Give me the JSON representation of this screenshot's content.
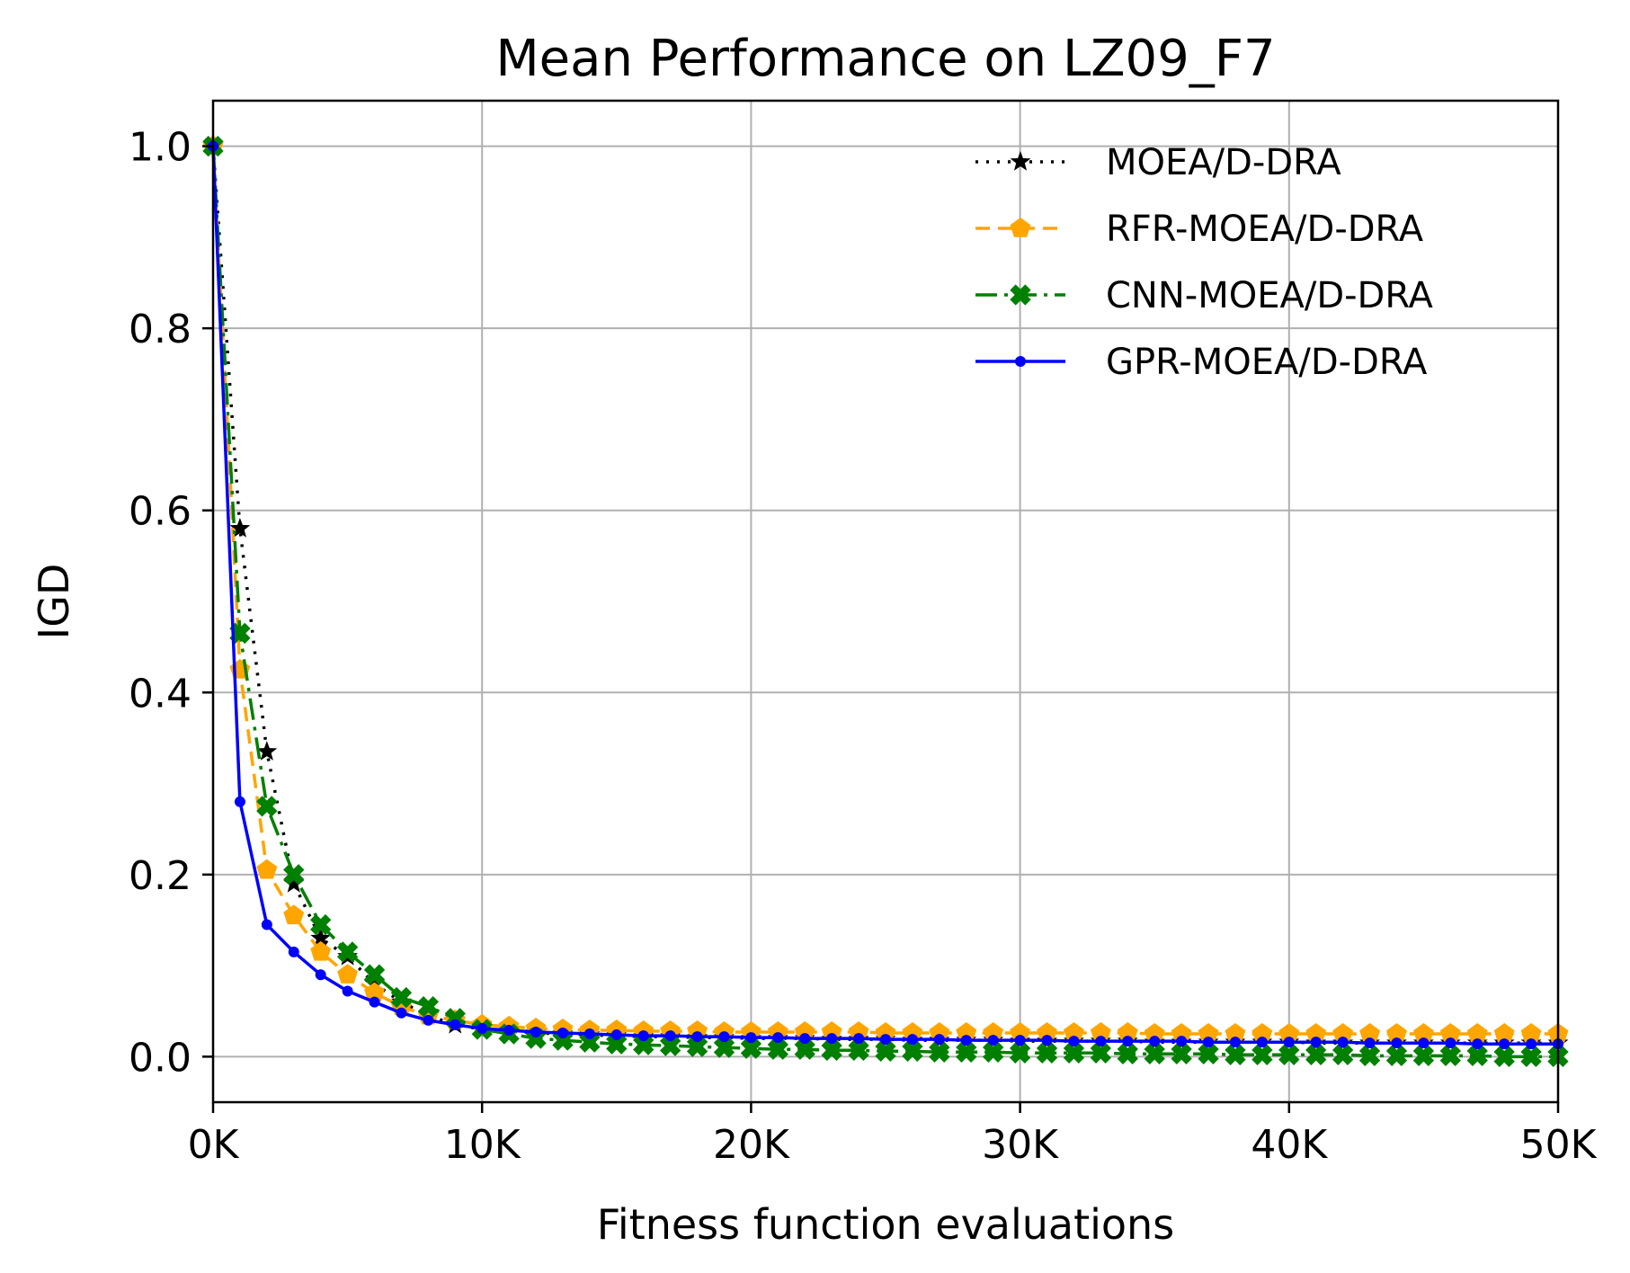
{
  "chart_data": {
    "type": "line",
    "title": "Mean Performance on LZ09_F7",
    "xlabel": "Fitness function evaluations",
    "ylabel": "IGD",
    "xlim": [
      0,
      50000
    ],
    "ylim": [
      -0.05,
      1.05
    ],
    "xticks": [
      0,
      10000,
      20000,
      30000,
      40000,
      50000
    ],
    "xtick_labels": [
      "0K",
      "10K",
      "20K",
      "30K",
      "40K",
      "50K"
    ],
    "yticks": [
      0.0,
      0.2,
      0.4,
      0.6,
      0.8,
      1.0
    ],
    "ytick_labels": [
      "0.0",
      "0.2",
      "0.4",
      "0.6",
      "0.8",
      "1.0"
    ],
    "grid": true,
    "legend_position": "top-right",
    "x": [
      0,
      1000,
      2000,
      3000,
      4000,
      5000,
      6000,
      7000,
      8000,
      9000,
      10000,
      11000,
      12000,
      13000,
      14000,
      15000,
      16000,
      17000,
      18000,
      19000,
      20000,
      21000,
      22000,
      23000,
      24000,
      25000,
      26000,
      27000,
      28000,
      29000,
      30000,
      31000,
      32000,
      33000,
      34000,
      35000,
      36000,
      37000,
      38000,
      39000,
      40000,
      41000,
      42000,
      43000,
      44000,
      45000,
      46000,
      47000,
      48000,
      49000,
      50000
    ],
    "series": [
      {
        "name": "MOEA/D-DRA",
        "color": "#000000",
        "linestyle": "dotted",
        "marker": "star",
        "values": [
          1.0,
          0.58,
          0.335,
          0.19,
          0.13,
          0.11,
          0.08,
          0.06,
          0.045,
          0.035,
          0.03,
          0.028,
          0.026,
          0.025,
          0.024,
          0.023,
          0.022,
          0.022,
          0.021,
          0.021,
          0.02,
          0.02,
          0.02,
          0.019,
          0.019,
          0.019,
          0.018,
          0.018,
          0.018,
          0.018,
          0.017,
          0.017,
          0.017,
          0.017,
          0.017,
          0.016,
          0.016,
          0.016,
          0.016,
          0.016,
          0.016,
          0.015,
          0.015,
          0.015,
          0.015,
          0.015,
          0.015,
          0.015,
          0.015,
          0.015,
          0.015
        ]
      },
      {
        "name": "RFR-MOEA/D-DRA",
        "color": "#FFA500",
        "linestyle": "dashed",
        "marker": "pentagon",
        "values": [
          1.0,
          0.425,
          0.205,
          0.155,
          0.115,
          0.09,
          0.07,
          0.055,
          0.045,
          0.04,
          0.035,
          0.033,
          0.031,
          0.03,
          0.029,
          0.029,
          0.028,
          0.028,
          0.028,
          0.027,
          0.027,
          0.027,
          0.027,
          0.027,
          0.027,
          0.026,
          0.026,
          0.026,
          0.026,
          0.026,
          0.026,
          0.026,
          0.026,
          0.026,
          0.026,
          0.025,
          0.025,
          0.025,
          0.025,
          0.025,
          0.025,
          0.025,
          0.025,
          0.025,
          0.025,
          0.025,
          0.025,
          0.025,
          0.025,
          0.025,
          0.025
        ]
      },
      {
        "name": "CNN-MOEA/D-DRA",
        "color": "#008000",
        "linestyle": "dashdot",
        "marker": "x-filled",
        "values": [
          1.0,
          0.465,
          0.275,
          0.2,
          0.145,
          0.115,
          0.09,
          0.065,
          0.055,
          0.042,
          0.03,
          0.025,
          0.02,
          0.018,
          0.016,
          0.014,
          0.013,
          0.012,
          0.011,
          0.01,
          0.009,
          0.008,
          0.008,
          0.007,
          0.007,
          0.006,
          0.006,
          0.005,
          0.005,
          0.005,
          0.004,
          0.004,
          0.004,
          0.004,
          0.003,
          0.003,
          0.003,
          0.003,
          0.002,
          0.002,
          0.002,
          0.002,
          0.002,
          0.001,
          0.001,
          0.001,
          0.001,
          0.001,
          0.0,
          0.0,
          0.0
        ]
      },
      {
        "name": "GPR-MOEA/D-DRA",
        "color": "#0000FF",
        "linestyle": "solid",
        "marker": "dot",
        "values": [
          1.0,
          0.28,
          0.145,
          0.115,
          0.09,
          0.072,
          0.06,
          0.048,
          0.04,
          0.035,
          0.031,
          0.029,
          0.027,
          0.026,
          0.025,
          0.024,
          0.023,
          0.023,
          0.022,
          0.022,
          0.021,
          0.021,
          0.02,
          0.02,
          0.02,
          0.019,
          0.019,
          0.019,
          0.018,
          0.018,
          0.018,
          0.018,
          0.017,
          0.017,
          0.017,
          0.017,
          0.017,
          0.016,
          0.016,
          0.016,
          0.016,
          0.016,
          0.016,
          0.015,
          0.015,
          0.015,
          0.015,
          0.014,
          0.014,
          0.014,
          0.014
        ]
      }
    ]
  }
}
